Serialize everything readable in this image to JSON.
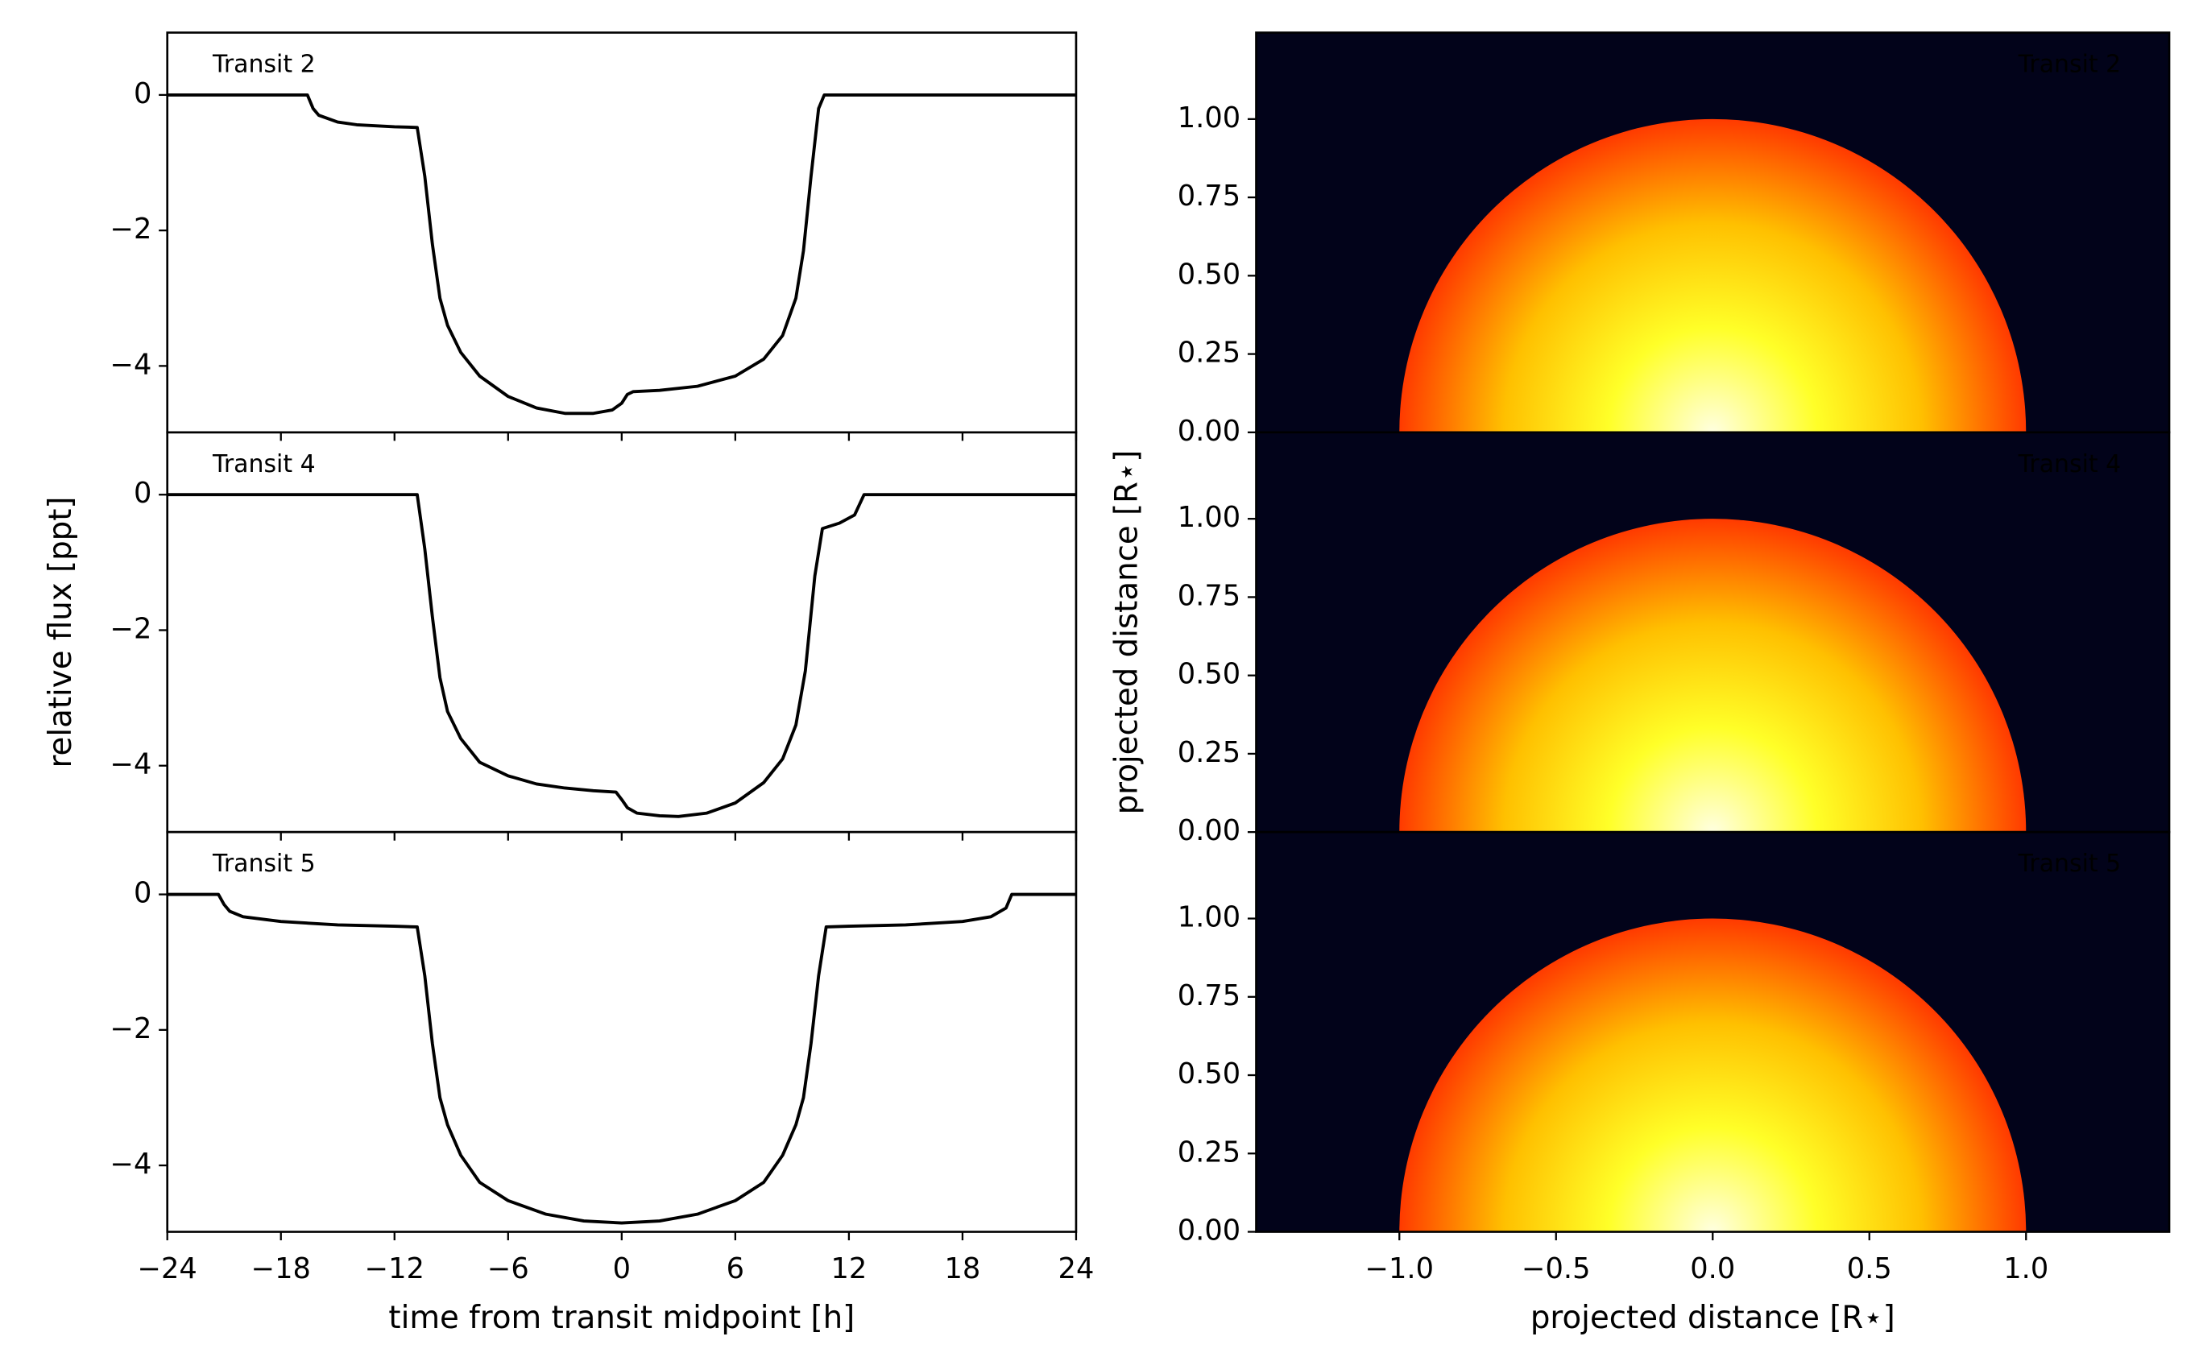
{
  "chart_data": [
    {
      "type": "line",
      "label": "Transit 2",
      "color": "#000000",
      "x": [
        -24,
        -16.6,
        -16.3,
        -16,
        -15,
        -14,
        -12,
        -10.8,
        -10.4,
        -10,
        -9.6,
        -9.2,
        -8.5,
        -7.5,
        -6,
        -4.5,
        -3,
        -1.5,
        -0.5,
        0,
        0.3,
        0.6,
        2,
        4,
        6,
        7.5,
        8.5,
        9.2,
        9.6,
        10,
        10.4,
        10.7,
        24
      ],
      "values": [
        0,
        0,
        -0.2,
        -0.3,
        -0.4,
        -0.44,
        -0.47,
        -0.48,
        -1.2,
        -2.2,
        -3.0,
        -3.4,
        -3.8,
        -4.15,
        -4.45,
        -4.62,
        -4.7,
        -4.7,
        -4.65,
        -4.55,
        -4.42,
        -4.38,
        -4.36,
        -4.3,
        -4.15,
        -3.9,
        -3.55,
        -3.0,
        -2.3,
        -1.2,
        -0.2,
        0,
        0
      ],
      "xlim": [
        -24,
        24
      ],
      "ylim": [
        -4.98,
        0.92
      ],
      "yticks": [
        {
          "value": -4,
          "label": "−4"
        },
        {
          "value": -2,
          "label": "−2"
        },
        0
      ]
    },
    {
      "type": "line",
      "label": "Transit 4",
      "color": "#000000",
      "ylabel": "relative flux [ppt]",
      "x": [
        -24,
        -10.8,
        -10.4,
        -10,
        -9.6,
        -9.2,
        -8.5,
        -7.5,
        -6,
        -4.5,
        -3,
        -1.5,
        -0.3,
        0,
        0.3,
        0.8,
        2,
        3,
        4.5,
        6,
        7.5,
        8.5,
        9.2,
        9.7,
        10.2,
        10.6,
        11.5,
        12.3,
        12.8,
        24
      ],
      "values": [
        0,
        0,
        -0.8,
        -1.8,
        -2.7,
        -3.2,
        -3.6,
        -3.95,
        -4.15,
        -4.27,
        -4.33,
        -4.37,
        -4.39,
        -4.5,
        -4.62,
        -4.7,
        -4.74,
        -4.75,
        -4.7,
        -4.55,
        -4.25,
        -3.9,
        -3.4,
        -2.6,
        -1.2,
        -0.5,
        -0.42,
        -0.3,
        0,
        0
      ],
      "xlim": [
        -24,
        24
      ],
      "ylim": [
        -4.98,
        0.92
      ],
      "yticks": [
        {
          "value": -4,
          "label": "−4"
        },
        {
          "value": -2,
          "label": "−2"
        },
        0
      ]
    },
    {
      "type": "line",
      "label": "Transit 5",
      "color": "#000000",
      "xlabel": "time from transit midpoint [h]",
      "x": [
        -24,
        -21.3,
        -21,
        -20.7,
        -20,
        -18,
        -15,
        -12,
        -10.8,
        -10.4,
        -10,
        -9.6,
        -9.2,
        -8.5,
        -7.5,
        -6,
        -4,
        -2,
        0,
        2,
        4,
        6,
        7.5,
        8.5,
        9.2,
        9.6,
        10,
        10.4,
        10.8,
        12,
        15,
        18,
        19.5,
        20.3,
        20.6,
        24
      ],
      "values": [
        0,
        0,
        -0.15,
        -0.25,
        -0.33,
        -0.4,
        -0.45,
        -0.47,
        -0.48,
        -1.2,
        -2.2,
        -3.0,
        -3.4,
        -3.85,
        -4.25,
        -4.52,
        -4.72,
        -4.82,
        -4.85,
        -4.82,
        -4.72,
        -4.52,
        -4.25,
        -3.85,
        -3.4,
        -3.0,
        -2.2,
        -1.2,
        -0.48,
        -0.47,
        -0.45,
        -0.4,
        -0.33,
        -0.2,
        0,
        0
      ],
      "xlim": [
        -24,
        24
      ],
      "ylim": [
        -4.98,
        0.92
      ],
      "xticks": [
        {
          "value": -24,
          "label": "−24"
        },
        {
          "value": -18,
          "label": "−18"
        },
        {
          "value": -12,
          "label": "−12"
        },
        {
          "value": -6,
          "label": "−6"
        },
        0,
        6,
        12,
        18,
        24
      ],
      "yticks": [
        {
          "value": -4,
          "label": "−4"
        },
        {
          "value": -2,
          "label": "−2"
        },
        0
      ]
    },
    {
      "type": "image",
      "label": "Transit 2",
      "label_color": "#ffffff",
      "background": "#02031a",
      "radius": 1,
      "colors": [
        "#ffffe0",
        "#ffff28",
        "#ffc000",
        "#ff3a00"
      ],
      "xlim": [
        -1.457,
        1.457
      ],
      "ylim": [
        0,
        1.276
      ],
      "yticks": [
        {
          "value": 0,
          "label": "0.00"
        },
        {
          "value": 0.25,
          "label": "0.25"
        },
        {
          "value": 0.5,
          "label": "0.50"
        },
        {
          "value": 0.75,
          "label": "0.75"
        },
        {
          "value": 1,
          "label": "1.00"
        }
      ]
    },
    {
      "type": "image",
      "label": "Transit 4",
      "label_color": "#ffffff",
      "background": "#02031a",
      "ylabel": "projected distance [R⋆]",
      "radius": 1,
      "colors": [
        "#ffffe0",
        "#ffff28",
        "#ffc000",
        "#ff3a00"
      ],
      "xlim": [
        -1.457,
        1.457
      ],
      "ylim": [
        0,
        1.276
      ],
      "yticks": [
        {
          "value": 0,
          "label": "0.00"
        },
        {
          "value": 0.25,
          "label": "0.25"
        },
        {
          "value": 0.5,
          "label": "0.50"
        },
        {
          "value": 0.75,
          "label": "0.75"
        },
        {
          "value": 1,
          "label": "1.00"
        }
      ]
    },
    {
      "type": "image",
      "label": "Transit 5",
      "label_color": "#ffffff",
      "background": "#02031a",
      "xlabel": "projected distance [R⋆]",
      "radius": 1,
      "colors": [
        "#ffffe0",
        "#ffff28",
        "#ffc000",
        "#ff3a00"
      ],
      "xlim": [
        -1.457,
        1.457
      ],
      "ylim": [
        0,
        1.276
      ],
      "xticks": [
        {
          "value": -1,
          "label": "−1.0"
        },
        {
          "value": -0.5,
          "label": "−0.5"
        },
        {
          "value": 0,
          "label": "0.0"
        },
        {
          "value": 0.5,
          "label": "0.5"
        },
        {
          "value": 1,
          "label": "1.0"
        }
      ],
      "yticks": [
        {
          "value": 0,
          "label": "0.00"
        },
        {
          "value": 0.25,
          "label": "0.25"
        },
        {
          "value": 0.5,
          "label": "0.50"
        },
        {
          "value": 0.75,
          "label": "0.75"
        },
        {
          "value": 1,
          "label": "1.00"
        }
      ]
    }
  ]
}
